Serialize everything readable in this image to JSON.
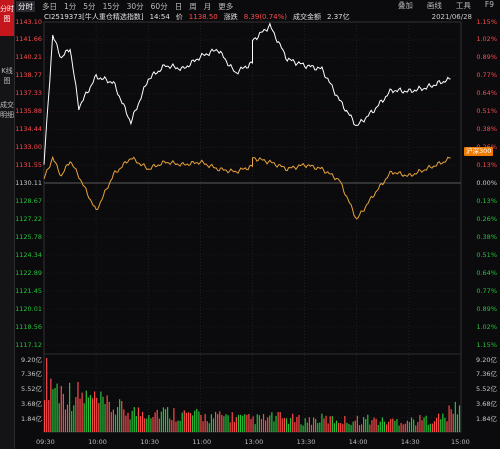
{
  "sidebar": {
    "items": [
      {
        "label": "分时图",
        "active": true
      },
      {
        "label": "K线图",
        "active": false
      },
      {
        "label": "成交明细",
        "active": false
      }
    ]
  },
  "toolbar": {
    "left": [
      "分时",
      "多日",
      "1分",
      "5分",
      "15分",
      "30分",
      "60分",
      "日",
      "周",
      "月",
      "更多"
    ],
    "right": [
      "叠加",
      "画线",
      "工具",
      "F9"
    ]
  },
  "info": {
    "code_name": "CI2519373[牛人重仓精选指数]",
    "time": "14:54",
    "price_label": "价",
    "price": "1138.50",
    "change_label": "涨跌",
    "change": "8.39(0.74%)",
    "amount_label": "成交金额",
    "amount": "2.37亿",
    "date": "2021/06/28"
  },
  "price_axis": {
    "left_up": [
      "1143.10",
      "1141.66",
      "1140.21",
      "1138.77",
      "1137.33",
      "1135.88",
      "1134.44",
      "1133.00",
      "1131.55"
    ],
    "base": "1130.11",
    "left_down": [
      "1128.67",
      "1127.22",
      "1125.78",
      "1124.34",
      "1122.89",
      "1121.45",
      "1120.01",
      "1118.56",
      "1117.12"
    ],
    "right_up": [
      "1.15%",
      "1.02%",
      "0.89%",
      "0.77%",
      "0.64%",
      "0.51%",
      "0.38%",
      "0.26%",
      "0.13%"
    ],
    "base_pct": "0.00%",
    "right_down": [
      "0.13%",
      "0.26%",
      "0.38%",
      "0.51%",
      "0.64%",
      "0.77%",
      "0.89%",
      "1.02%",
      "1.15%"
    ]
  },
  "volume_axis": {
    "left": [
      "9.20亿",
      "7.36亿",
      "5.52亿",
      "3.68亿",
      "1.84亿"
    ],
    "right": [
      "9.20亿",
      "7.36亿",
      "5.52亿",
      "3.68亿",
      "1.84亿"
    ]
  },
  "time_axis": [
    "09:30",
    "10:00",
    "10:30",
    "11:00",
    "13:00",
    "13:30",
    "14:00",
    "14:30",
    "15:00"
  ],
  "overlay_label": "沪深300",
  "colors": {
    "up": "#ff4a4a",
    "down": "#27c23a",
    "price_line": "#ffffff",
    "overlay_line": "#e6a23c",
    "badge": "#ee7a00"
  },
  "chart_data": {
    "type": "line",
    "series": [
      {
        "name": "CI2519373[牛人重仓精选指数]",
        "x": [
          "09:30",
          "09:35",
          "09:40",
          "09:45",
          "09:50",
          "10:00",
          "10:10",
          "10:20",
          "10:30",
          "10:40",
          "10:50",
          "11:00",
          "11:10",
          "11:20",
          "11:30",
          "13:00",
          "13:10",
          "13:20",
          "13:30",
          "13:40",
          "13:50",
          "14:00",
          "14:10",
          "14:20",
          "14:30",
          "14:40",
          "14:50",
          "14:54"
        ],
        "values": [
          1131.6,
          1142.0,
          1140.2,
          1141.0,
          1136.2,
          1138.7,
          1138.2,
          1135.0,
          1138.5,
          1139.6,
          1139.3,
          1140.3,
          1140.9,
          1139.0,
          1139.8,
          1141.6,
          1142.8,
          1140.1,
          1139.6,
          1139.3,
          1136.8,
          1134.7,
          1136.0,
          1137.6,
          1137.5,
          1137.8,
          1138.3,
          1138.5
        ]
      },
      {
        "name": "沪深300",
        "x": [
          "09:30",
          "09:35",
          "09:40",
          "09:45",
          "09:50",
          "10:00",
          "10:10",
          "10:20",
          "10:30",
          "10:40",
          "10:50",
          "11:00",
          "11:10",
          "11:20",
          "11:30",
          "13:00",
          "13:10",
          "13:20",
          "13:30",
          "13:40",
          "13:50",
          "14:00",
          "14:10",
          "14:20",
          "14:30",
          "14:40",
          "14:50",
          "14:54"
        ],
        "pct": [
          0.03,
          0.18,
          0.05,
          0.16,
          0.05,
          -0.2,
          0.06,
          0.18,
          0.1,
          0.15,
          0.13,
          0.15,
          0.1,
          0.08,
          0.12,
          0.18,
          0.15,
          0.1,
          0.13,
          0.1,
          0.02,
          -0.26,
          -0.08,
          0.08,
          0.05,
          0.1,
          0.15,
          0.18
        ]
      }
    ],
    "volume_yi": [
      7.2,
      5.0,
      4.6,
      4.0,
      3.2,
      2.8,
      2.4,
      2.6,
      2.4,
      2.2,
      2.0,
      1.8,
      2.0,
      1.6,
      1.6,
      1.8,
      1.6,
      1.4,
      1.6,
      1.5,
      1.4,
      1.6,
      1.3,
      1.4,
      1.4,
      1.6,
      1.8,
      3.4
    ],
    "ylim": [
      1117.12,
      1143.1
    ],
    "base": 1130.11,
    "volume_ylim": [
      0,
      9.2
    ]
  }
}
